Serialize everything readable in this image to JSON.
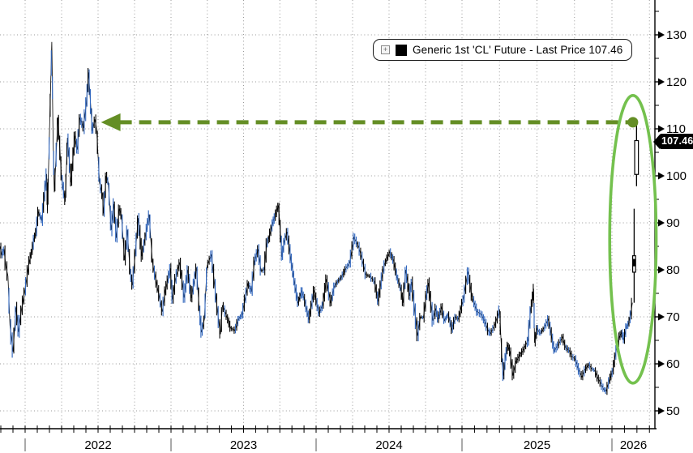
{
  "chart_data": {
    "type": "line",
    "description": "Daily price bar chart of WTI crude front-month future, Nov 2021 to early 2026, ending in a vertical spike to 107.46",
    "legend": {
      "expand_glyph": "+",
      "swatch_color": "#000000",
      "label": "Generic 1st 'CL' Future - Last Price 107.46"
    },
    "last_price": 107.46,
    "last_price_label": "107.46",
    "x_axis": {
      "year_labels": [
        "2022",
        "2023",
        "2024",
        "2025",
        "2026"
      ],
      "visible_range_decimal_years": [
        2021.827,
        2026.3
      ],
      "minor_ticks": "monthly",
      "vertical_grid": "quarterly"
    },
    "y_axis": {
      "side": "right",
      "major_tick_labels": [
        130,
        120,
        110,
        100,
        90,
        80,
        70,
        60,
        50
      ],
      "minor_tick_step": 5,
      "minor_tick_range": [
        50,
        135
      ],
      "grid": "horizontal dotted at each major tick"
    },
    "colors": {
      "bar_black": "#000000",
      "bar_blue": "#3368be",
      "grid": "#999999",
      "axis": "#000000",
      "arrow_green": "#648e25",
      "ellipse_green": "#74c14e",
      "price_tag_bg": "#000000",
      "price_tag_text": "#ffffff"
    },
    "annotations": {
      "arrow": {
        "type": "horizontal-dashed-arrow",
        "price_level": 111.4,
        "from_decimal_year": 2026.14,
        "to_decimal_year": 2022.57,
        "color": "#648e25",
        "endpoint_dot": true,
        "meaning": "current spike revisits 2022 price levels"
      },
      "ellipse": {
        "center_decimal_year": 2026.14,
        "center_price": 86.5,
        "radius_years": 0.155,
        "radius_price": 30.6,
        "color": "#74c14e"
      }
    },
    "series": [
      {
        "name": "Generic 1st 'CL' Future",
        "points_t_price": [
          [
            2021.827,
            85.0
          ],
          [
            2021.84,
            83.2
          ],
          [
            2021.855,
            84.3
          ],
          [
            2021.868,
            80.8
          ],
          [
            2021.882,
            78.7
          ],
          [
            2021.896,
            68.2
          ],
          [
            2021.917,
            62.6
          ],
          [
            2021.938,
            72.0
          ],
          [
            2021.955,
            66.8
          ],
          [
            2021.975,
            71.5
          ],
          [
            2021.997,
            75.4
          ],
          [
            2022.03,
            82.0
          ],
          [
            2022.045,
            83.9
          ],
          [
            2022.06,
            86.5
          ],
          [
            2022.075,
            88.2
          ],
          [
            2022.09,
            92.4
          ],
          [
            2022.115,
            90.5
          ],
          [
            2022.13,
            95.6
          ],
          [
            2022.148,
            100.4
          ],
          [
            2022.153,
            92.0
          ],
          [
            2022.168,
            110.5
          ],
          [
            2022.183,
            128.5
          ],
          [
            2022.191,
            109.0
          ],
          [
            2022.2,
            96.5
          ],
          [
            2022.225,
            112.5
          ],
          [
            2022.25,
            99.4
          ],
          [
            2022.275,
            94.5
          ],
          [
            2022.29,
            108.1
          ],
          [
            2022.315,
            98.6
          ],
          [
            2022.34,
            108.5
          ],
          [
            2022.358,
            105.6
          ],
          [
            2022.375,
            112.4
          ],
          [
            2022.4,
            110.2
          ],
          [
            2022.42,
            115.5
          ],
          [
            2022.435,
            122.0
          ],
          [
            2022.46,
            109.6
          ],
          [
            2022.478,
            112.0
          ],
          [
            2022.49,
            110.0
          ],
          [
            2022.51,
            98.5
          ],
          [
            2022.53,
            96.0
          ],
          [
            2022.538,
            92.0
          ],
          [
            2022.555,
            100.0
          ],
          [
            2022.57,
            98.6
          ],
          [
            2022.59,
            88.5
          ],
          [
            2022.608,
            94.0
          ],
          [
            2022.625,
            86.8
          ],
          [
            2022.645,
            93.0
          ],
          [
            2022.66,
            91.6
          ],
          [
            2022.682,
            82.0
          ],
          [
            2022.7,
            88.5
          ],
          [
            2022.72,
            79.5
          ],
          [
            2022.735,
            76.7
          ],
          [
            2022.755,
            83.5
          ],
          [
            2022.775,
            91.0
          ],
          [
            2022.8,
            82.9
          ],
          [
            2022.825,
            87.3
          ],
          [
            2022.85,
            91.8
          ],
          [
            2022.872,
            81.6
          ],
          [
            2022.9,
            77.2
          ],
          [
            2022.92,
            74.3
          ],
          [
            2022.94,
            71.1
          ],
          [
            2022.96,
            75.5
          ],
          [
            2022.995,
            80.3
          ],
          [
            2023.01,
            73.7
          ],
          [
            2023.03,
            78.0
          ],
          [
            2023.06,
            81.6
          ],
          [
            2023.09,
            74.1
          ],
          [
            2023.115,
            80.0
          ],
          [
            2023.14,
            74.0
          ],
          [
            2023.175,
            80.5
          ],
          [
            2023.195,
            71.5
          ],
          [
            2023.21,
            66.7
          ],
          [
            2023.23,
            69.5
          ],
          [
            2023.248,
            80.8
          ],
          [
            2023.278,
            83.3
          ],
          [
            2023.31,
            74.0
          ],
          [
            2023.33,
            68.6
          ],
          [
            2023.341,
            66.3
          ],
          [
            2023.355,
            72.5
          ],
          [
            2023.385,
            70.0
          ],
          [
            2023.41,
            67.6
          ],
          [
            2023.44,
            67.1
          ],
          [
            2023.465,
            69.5
          ],
          [
            2023.49,
            70.5
          ],
          [
            2023.53,
            77.0
          ],
          [
            2023.555,
            75.5
          ],
          [
            2023.575,
            81.8
          ],
          [
            2023.6,
            84.4
          ],
          [
            2023.62,
            79.8
          ],
          [
            2023.642,
            80.0
          ],
          [
            2023.66,
            85.5
          ],
          [
            2023.675,
            86.8
          ],
          [
            2023.7,
            90.0
          ],
          [
            2023.715,
            91.2
          ],
          [
            2023.74,
            93.7
          ],
          [
            2023.765,
            82.8
          ],
          [
            2023.78,
            86.0
          ],
          [
            2023.8,
            88.1
          ],
          [
            2023.825,
            82.5
          ],
          [
            2023.85,
            77.4
          ],
          [
            2023.875,
            72.9
          ],
          [
            2023.9,
            75.5
          ],
          [
            2023.916,
            74.1
          ],
          [
            2023.95,
            69.4
          ],
          [
            2023.985,
            75.6
          ],
          [
            2024.02,
            70.8
          ],
          [
            2024.045,
            72.5
          ],
          [
            2024.07,
            78.0
          ],
          [
            2024.1,
            72.9
          ],
          [
            2024.125,
            76.5
          ],
          [
            2024.15,
            77.6
          ],
          [
            2024.175,
            78.5
          ],
          [
            2024.2,
            80.1
          ],
          [
            2024.23,
            81.5
          ],
          [
            2024.26,
            86.9
          ],
          [
            2024.29,
            85.0
          ],
          [
            2024.31,
            82.9
          ],
          [
            2024.34,
            79.0
          ],
          [
            2024.37,
            78.6
          ],
          [
            2024.4,
            77.5
          ],
          [
            2024.425,
            73.3
          ],
          [
            2024.45,
            78.5
          ],
          [
            2024.47,
            81.3
          ],
          [
            2024.505,
            83.8
          ],
          [
            2024.53,
            82.0
          ],
          [
            2024.555,
            78.4
          ],
          [
            2024.58,
            76.0
          ],
          [
            2024.595,
            73.0
          ],
          [
            2024.615,
            80.0
          ],
          [
            2024.64,
            74.5
          ],
          [
            2024.655,
            77.4
          ],
          [
            2024.675,
            71.5
          ],
          [
            2024.695,
            66.0
          ],
          [
            2024.715,
            70.0
          ],
          [
            2024.735,
            69.8
          ],
          [
            2024.755,
            74.5
          ],
          [
            2024.77,
            77.2
          ],
          [
            2024.8,
            69.2
          ],
          [
            2024.82,
            71.8
          ],
          [
            2024.835,
            69.5
          ],
          [
            2024.86,
            72.0
          ],
          [
            2024.88,
            69.2
          ],
          [
            2024.905,
            70.5
          ],
          [
            2024.93,
            67.3
          ],
          [
            2024.955,
            70.0
          ],
          [
            2024.975,
            69.5
          ],
          [
            2025.01,
            74.0
          ],
          [
            2025.04,
            79.6
          ],
          [
            2025.065,
            74.5
          ],
          [
            2025.1,
            71.1
          ],
          [
            2025.13,
            70.5
          ],
          [
            2025.155,
            68.7
          ],
          [
            2025.175,
            67.0
          ],
          [
            2025.19,
            66.5
          ],
          [
            2025.22,
            68.3
          ],
          [
            2025.25,
            71.6
          ],
          [
            2025.268,
            60.0
          ],
          [
            2025.276,
            57.5
          ],
          [
            2025.29,
            61.5
          ],
          [
            2025.305,
            64.0
          ],
          [
            2025.32,
            62.5
          ],
          [
            2025.34,
            57.5
          ],
          [
            2025.36,
            60.5
          ],
          [
            2025.385,
            61.8
          ],
          [
            2025.41,
            63.0
          ],
          [
            2025.44,
            65.0
          ],
          [
            2025.458,
            71.5
          ],
          [
            2025.472,
            74.5
          ],
          [
            2025.478,
            76.0
          ],
          [
            2025.484,
            64.5
          ],
          [
            2025.5,
            67.5
          ],
          [
            2025.52,
            66.5
          ],
          [
            2025.545,
            67.5
          ],
          [
            2025.575,
            69.5
          ],
          [
            2025.6,
            65.5
          ],
          [
            2025.615,
            62.8
          ],
          [
            2025.64,
            64.0
          ],
          [
            2025.67,
            65.7
          ],
          [
            2025.69,
            63.5
          ],
          [
            2025.715,
            62.8
          ],
          [
            2025.735,
            61.5
          ],
          [
            2025.755,
            61.0
          ],
          [
            2025.78,
            58.5
          ],
          [
            2025.8,
            57.2
          ],
          [
            2025.82,
            58.8
          ],
          [
            2025.845,
            59.8
          ],
          [
            2025.865,
            59.0
          ],
          [
            2025.885,
            58.6
          ],
          [
            2025.905,
            57.0
          ],
          [
            2025.925,
            55.9
          ],
          [
            2025.945,
            54.6
          ],
          [
            2025.962,
            54.2
          ],
          [
            2025.982,
            56.5
          ],
          [
            2026.005,
            58.5
          ],
          [
            2026.03,
            63.2
          ],
          [
            2026.05,
            65.8
          ],
          [
            2026.065,
            66.6
          ],
          [
            2026.08,
            65.2
          ],
          [
            2026.095,
            67.8
          ],
          [
            2026.11,
            68.5
          ],
          [
            2026.125,
            70.5
          ],
          [
            2026.136,
            73.0
          ]
        ],
        "spike_bars": [
          {
            "t": 2026.148,
            "high": 93.0,
            "low": 73.0,
            "body_high": 83.0,
            "body_low": 79.5
          },
          {
            "t": 2026.164,
            "high": 111.5,
            "low": 97.8,
            "body_high": 107.5,
            "body_low": 100.3,
            "close": 107.46
          }
        ]
      }
    ]
  }
}
